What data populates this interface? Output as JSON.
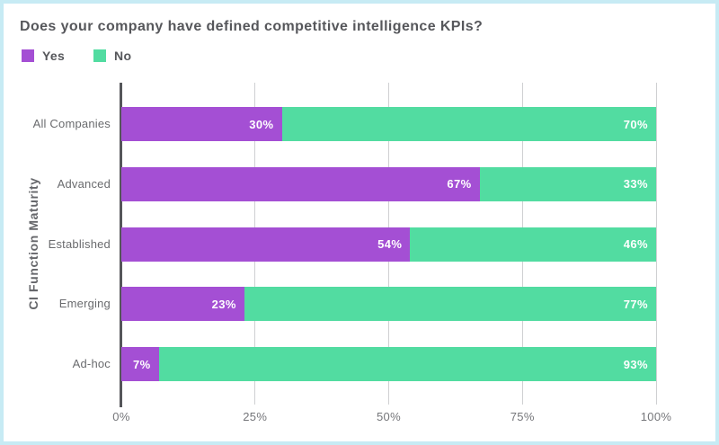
{
  "frame": {
    "background": "#ffffff",
    "border_color": "#c7ebf4"
  },
  "title": "Does your company have defined competitive intelligence KPIs?",
  "legend": {
    "items": [
      {
        "label": "Yes",
        "color": "#a44fd4"
      },
      {
        "label": "No",
        "color": "#52dca1"
      }
    ]
  },
  "colors": {
    "yes_segment": "#a44fd4",
    "no_segment": "#52dca1",
    "axis_line": "#55565a",
    "gridline": "#cfd0d2",
    "title_text": "#56575b",
    "category_text": "#6a6b6e",
    "tick_text": "#75767a",
    "value_text": "#ffffff"
  },
  "chart_data": {
    "type": "bar",
    "orientation": "horizontal",
    "stacked": true,
    "title": "Does your company have defined competitive intelligence KPIs?",
    "ylabel": "CI Function Maturity",
    "xlabel": "",
    "categories": [
      "All Companies",
      "Advanced",
      "Established",
      "Emerging",
      "Ad-hoc"
    ],
    "series": [
      {
        "name": "Yes",
        "color": "#a44fd4",
        "values": [
          30,
          67,
          54,
          23,
          7
        ]
      },
      {
        "name": "No",
        "color": "#52dca1",
        "values": [
          70,
          33,
          46,
          77,
          93
        ]
      }
    ],
    "value_suffix": "%",
    "x_ticks": [
      "0%",
      "25%",
      "50%",
      "75%",
      "100%"
    ],
    "x_tick_values": [
      0,
      25,
      50,
      75,
      100
    ],
    "xlim": [
      0,
      100
    ],
    "grid": true,
    "legend_position": "top-left"
  }
}
